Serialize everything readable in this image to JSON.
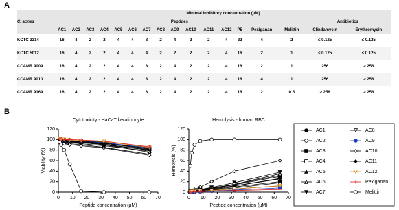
{
  "panel_a": "A",
  "panel_b": "B",
  "table": {
    "header": "Minimal inhibitory concentration (μM)",
    "row_header": "C. acnes",
    "groups": [
      "Peptides",
      "Antibiotics"
    ],
    "columns": [
      "AC1",
      "AC2",
      "AC3",
      "AC4",
      "AC5",
      "AC6",
      "AC7",
      "AC8",
      "AC9",
      "AC10",
      "AC11",
      "AC12",
      "P5",
      "Pexiganan",
      "Melittin",
      "Clindamycin",
      "Erythromycin"
    ],
    "rows": [
      {
        "strain": "KCTC 3314",
        "values": [
          16,
          4,
          2,
          2,
          4,
          4,
          8,
          2,
          4,
          2,
          2,
          4,
          32,
          4,
          2,
          "≤ 0.125",
          "≤ 0.125"
        ]
      },
      {
        "strain": "KCTC 5012",
        "values": [
          16,
          4,
          2,
          2,
          4,
          4,
          4,
          2,
          2,
          2,
          2,
          4,
          16,
          2,
          1,
          "≤ 0.125",
          "≤ 0.125"
        ]
      },
      {
        "strain": "CCAMR 9009",
        "values": [
          16,
          4,
          2,
          2,
          4,
          4,
          8,
          2,
          4,
          2,
          2,
          4,
          16,
          2,
          1,
          256,
          "≥ 256"
        ]
      },
      {
        "strain": "CCAMR 9010",
        "values": [
          16,
          4,
          2,
          2,
          4,
          4,
          8,
          2,
          4,
          2,
          2,
          4,
          16,
          4,
          1,
          256,
          "≥ 256"
        ]
      },
      {
        "strain": "CCAMR 9169",
        "values": [
          16,
          4,
          2,
          2,
          4,
          4,
          8,
          2,
          4,
          2,
          2,
          4,
          16,
          2,
          0.5,
          "≥ 256",
          "≥ 256"
        ]
      }
    ]
  },
  "chart_data": [
    {
      "type": "line",
      "title": "Cytotoxicity - HaCaT keratinocyte",
      "x_label": "Peptide concentration (μM)",
      "y_label": "Viability (%)",
      "x": [
        1,
        2,
        4,
        8,
        16,
        32,
        64
      ],
      "xlim": [
        0,
        70
      ],
      "xticks": [
        0,
        10,
        20,
        30,
        40,
        50,
        60,
        70
      ],
      "ylim": [
        0,
        120
      ],
      "yticks": [
        0,
        20,
        40,
        60,
        80,
        100,
        120
      ],
      "series": [
        {
          "name": "AC1",
          "color": "#000000",
          "marker": "circle",
          "filled": true,
          "values": [
            100,
            98,
            97,
            96,
            94,
            90,
            80
          ]
        },
        {
          "name": "AC2",
          "color": "#000000",
          "marker": "circle",
          "filled": false,
          "values": [
            98,
            97,
            96,
            95,
            95,
            92,
            85
          ]
        },
        {
          "name": "AC3",
          "color": "#000000",
          "marker": "square",
          "filled": true,
          "values": [
            101,
            100,
            99,
            98,
            97,
            95,
            82
          ]
        },
        {
          "name": "AC4",
          "color": "#000000",
          "marker": "square",
          "filled": false,
          "values": [
            99,
            98,
            97,
            96,
            96,
            93,
            83
          ]
        },
        {
          "name": "AC5",
          "color": "#000000",
          "marker": "triangle",
          "filled": true,
          "values": [
            97,
            96,
            95,
            94,
            92,
            88,
            78
          ]
        },
        {
          "name": "AC6",
          "color": "#000000",
          "marker": "triangle",
          "filled": false,
          "values": [
            100,
            99,
            98,
            97,
            95,
            91,
            80
          ]
        },
        {
          "name": "AC7",
          "color": "#000000",
          "marker": "tri-down",
          "filled": true,
          "values": [
            96,
            95,
            93,
            92,
            90,
            85,
            72
          ]
        },
        {
          "name": "AC8",
          "color": "#000000",
          "marker": "tri-down",
          "filled": false,
          "values": [
            98,
            97,
            96,
            95,
            94,
            90,
            76
          ]
        },
        {
          "name": "AC9",
          "color": "#1f3fbf",
          "marker": "circle",
          "filled": true,
          "values": [
            99,
            98,
            97,
            97,
            96,
            94,
            84
          ]
        },
        {
          "name": "AC10",
          "color": "#000000",
          "marker": "diamond",
          "filled": false,
          "values": [
            95,
            94,
            92,
            90,
            88,
            84,
            70
          ]
        },
        {
          "name": "AC11",
          "color": "#000000",
          "marker": "diamond",
          "filled": true,
          "values": [
            100,
            99,
            98,
            97,
            96,
            93,
            81
          ]
        },
        {
          "name": "AC12",
          "color": "#e08a1e",
          "marker": "tri-down",
          "filled": false,
          "values": [
            101,
            100,
            100,
            99,
            98,
            96,
            85
          ]
        },
        {
          "name": "Pexiganan",
          "color": "#d62020",
          "marker": "cross",
          "filled": false,
          "values": [
            102,
            101,
            100,
            100,
            99,
            97,
            86
          ]
        },
        {
          "name": "Melittin",
          "color": "#000000",
          "marker": "circle",
          "filled": false,
          "values": [
            95,
            90,
            80,
            53,
            2,
            0,
            0
          ]
        }
      ]
    },
    {
      "type": "line",
      "title": "Hemolysis  - human RBC",
      "x_label": "Peptide concentration (μM)",
      "y_label": "Hemolysis (%)",
      "x": [
        1,
        2,
        4,
        8,
        16,
        32,
        64
      ],
      "xlim": [
        0,
        70
      ],
      "xticks": [
        0,
        10,
        20,
        30,
        40,
        50,
        60,
        70
      ],
      "ylim": [
        0,
        120
      ],
      "yticks": [
        0,
        20,
        40,
        60,
        80,
        100,
        120
      ],
      "series": [
        {
          "color": "#000000",
          "marker": "circle",
          "filled": true,
          "values": [
            0,
            1,
            2,
            3,
            5,
            10,
            20
          ]
        },
        {
          "color": "#000000",
          "marker": "circle",
          "filled": false,
          "values": [
            0,
            1,
            1,
            2,
            3,
            6,
            12
          ]
        },
        {
          "color": "#000000",
          "marker": "square",
          "filled": true,
          "values": [
            1,
            1,
            2,
            4,
            7,
            14,
            30
          ]
        },
        {
          "color": "#000000",
          "marker": "square",
          "filled": false,
          "values": [
            0,
            1,
            2,
            3,
            6,
            12,
            25
          ]
        },
        {
          "color": "#000000",
          "marker": "triangle",
          "filled": true,
          "values": [
            1,
            2,
            3,
            5,
            8,
            15,
            35
          ]
        },
        {
          "color": "#000000",
          "marker": "triangle",
          "filled": false,
          "values": [
            0,
            1,
            1,
            2,
            4,
            8,
            18
          ]
        },
        {
          "color": "#000000",
          "marker": "tri-down",
          "filled": true,
          "values": [
            1,
            2,
            3,
            5,
            9,
            18,
            38
          ]
        },
        {
          "color": "#000000",
          "marker": "tri-down",
          "filled": false,
          "values": [
            0,
            1,
            2,
            4,
            7,
            15,
            32
          ]
        },
        {
          "color": "#1f3fbf",
          "marker": "circle",
          "filled": true,
          "values": [
            0,
            0,
            1,
            1,
            2,
            4,
            8
          ]
        },
        {
          "color": "#000000",
          "marker": "diamond",
          "filled": false,
          "values": [
            2,
            3,
            5,
            10,
            20,
            40,
            60
          ]
        },
        {
          "color": "#000000",
          "marker": "diamond",
          "filled": true,
          "values": [
            1,
            2,
            3,
            4,
            6,
            12,
            26
          ]
        },
        {
          "color": "#e08a1e",
          "marker": "tri-down",
          "filled": false,
          "values": [
            0,
            1,
            1,
            2,
            3,
            6,
            12
          ]
        },
        {
          "color": "#d62020",
          "marker": "cross",
          "filled": false,
          "values": [
            0,
            0,
            1,
            1,
            2,
            3,
            5
          ]
        },
        {
          "color": "#000000",
          "marker": "circle",
          "filled": false,
          "values": [
            50,
            75,
            90,
            97,
            100,
            100,
            100
          ]
        }
      ]
    }
  ]
}
